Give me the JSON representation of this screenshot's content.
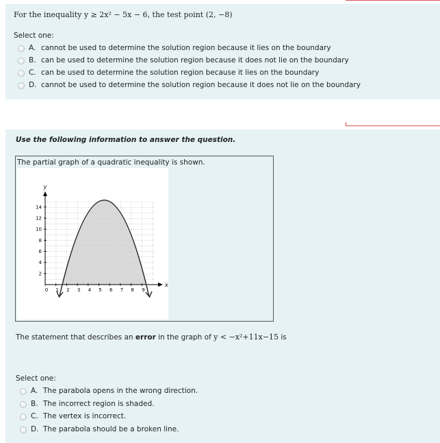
{
  "question1": {
    "prompt": "For the inequality y ≥ 2x² − 5x − 6, the test point (2, −8)",
    "select_label": "Select one:",
    "options": [
      {
        "letter": "A.",
        "text": "cannot be used to determine the solution region because it lies on the boundary"
      },
      {
        "letter": "B.",
        "text": "can be used to determine the solution region because it does not lie on the boundary"
      },
      {
        "letter": "C.",
        "text": "can be used to determine the solution region because it lies on the boundary"
      },
      {
        "letter": "D.",
        "text": "cannot be used to determine the solution region because it does not lie on the boundary"
      }
    ]
  },
  "question2": {
    "instruction": "Use the following information to answer the question.",
    "graph_caption": "The partial graph of a quadratic inequality is shown.",
    "graph": {
      "x_axis_label": "x",
      "y_axis_label": "y",
      "xticks": [
        0,
        1,
        2,
        3,
        4,
        5,
        6,
        7,
        8,
        9
      ],
      "yticks": [
        2,
        4,
        6,
        8,
        10,
        12,
        14
      ]
    },
    "statement": {
      "before": "The statement that describes an",
      "emphasis": "error",
      "after": "in the graph of",
      "math": "y < −x²+11x−15",
      "end": "is"
    },
    "select_label": "Select one:",
    "options": [
      {
        "letter": "A.",
        "text": "The parabola opens in the wrong direction."
      },
      {
        "letter": "B.",
        "text": "The incorrect region is shaded."
      },
      {
        "letter": "C.",
        "text": "The vertex is incorrect."
      },
      {
        "letter": "D.",
        "text": "The parabola should be a broken line."
      }
    ]
  }
}
